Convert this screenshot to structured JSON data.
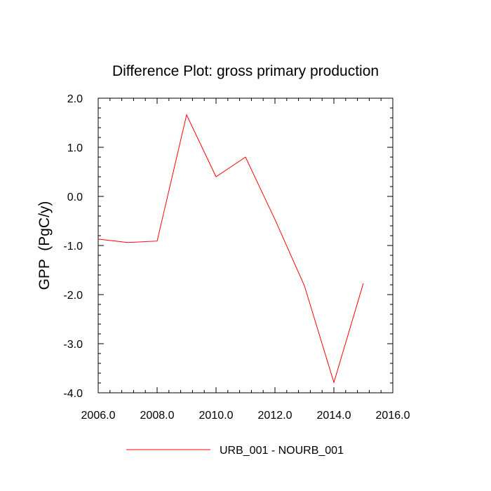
{
  "chart_data": {
    "type": "line",
    "title": "Difference Plot: gross primary production",
    "xlabel": "",
    "ylabel": "GPP  (PgC/y)",
    "xlim": [
      2006,
      2016
    ],
    "ylim": [
      -4,
      2
    ],
    "x_ticks": [
      2006,
      2008,
      2010,
      2012,
      2014,
      2016
    ],
    "x_tick_labels": [
      "2006.0",
      "2008.0",
      "2010.0",
      "2012.0",
      "2014.0",
      "2016.0"
    ],
    "y_ticks": [
      2,
      1,
      0,
      -1,
      -2,
      -3,
      -4
    ],
    "y_tick_labels": [
      "2.0",
      "1.0",
      "0.0",
      "-1.0",
      "-2.0",
      "-3.0",
      "-4.0"
    ],
    "grid": false,
    "legend_position": "bottom-center",
    "series": [
      {
        "name": "URB_001 - NOURB_001",
        "color": "#ff0000",
        "x": [
          2006,
          2007,
          2008,
          2009,
          2010,
          2011,
          2012,
          2013,
          2014,
          2015
        ],
        "y": [
          -0.87,
          -0.94,
          -0.91,
          1.66,
          0.4,
          0.8,
          -0.47,
          -1.82,
          -3.79,
          -1.77
        ]
      }
    ]
  }
}
